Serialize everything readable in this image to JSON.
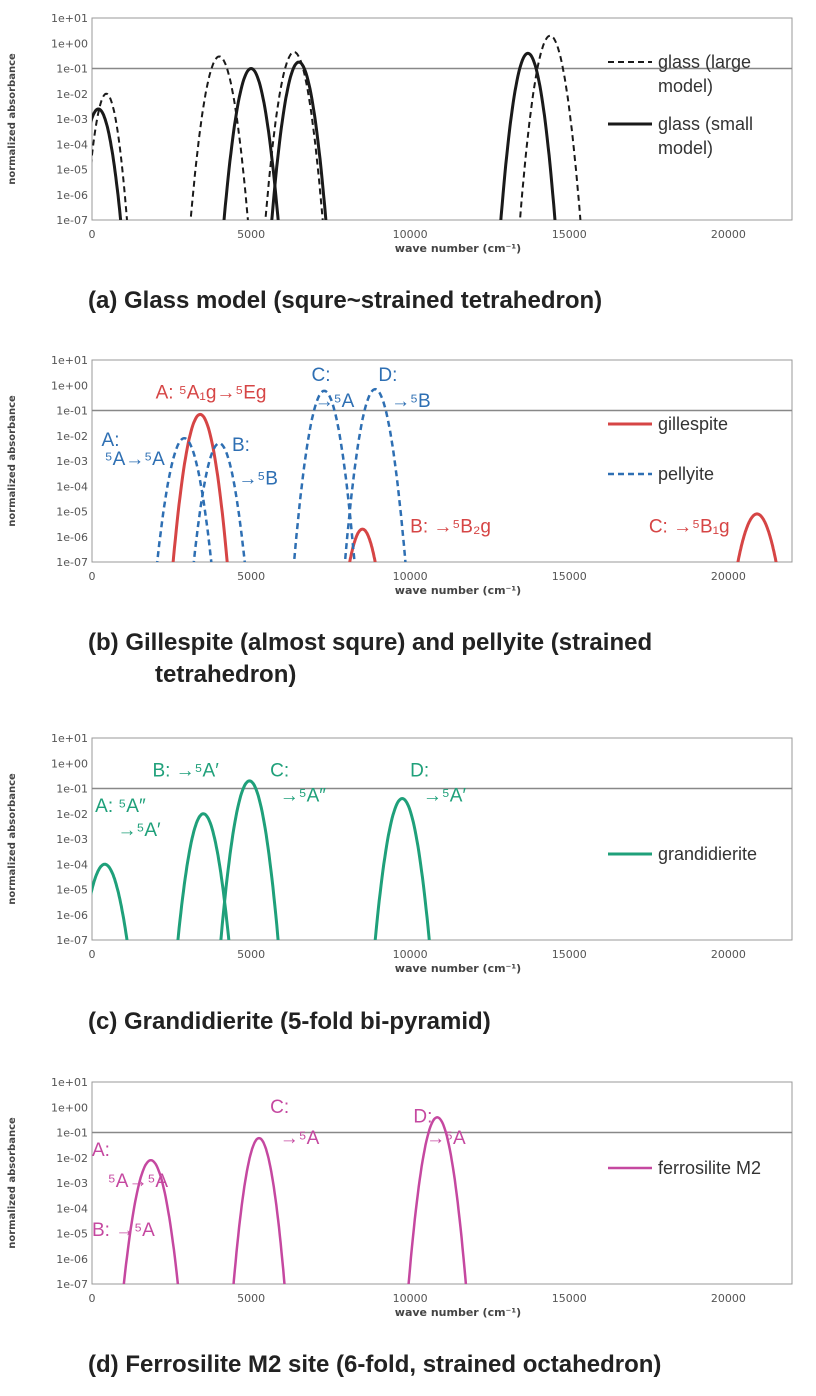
{
  "colors": {
    "black": "#1a1a1a",
    "red": "#d64545",
    "blue": "#2e6fb3",
    "green": "#1fa07a",
    "magenta": "#c548a0",
    "axis": "#999999",
    "ref_line": "#888888"
  },
  "captions": {
    "a": "(a) Glass model (squre~strained tetrahedron)",
    "b1": "(b) Gillespite (almost squre) and pellyite (strained",
    "b2": "tetrahedron)",
    "c": "(c) Grandidierite (5-fold bi-pyramid)",
    "d": "(d) Ferrosilite M2 site (6-fold, strained octahedron)"
  },
  "chart_data": [
    {
      "id": "a",
      "type": "line",
      "yscale": "log",
      "ylim": [
        1e-07,
        10
      ],
      "xlim": [
        0,
        22000
      ],
      "ylabel": "normalized absorbance",
      "xlabel": "wave number (cm⁻¹)",
      "x_ticks": [
        "0",
        "5000",
        "10000",
        "15000",
        "20000"
      ],
      "y_ticks": [
        "1e-07",
        "1e-06",
        "1e-05",
        "1e-04",
        "1e-03",
        "1e-02",
        "1e-01",
        "1e+00",
        "1e+01"
      ],
      "reference_line": 0.1,
      "grid": false,
      "legend": "right",
      "series": [
        {
          "name": "glass (large model)",
          "style": "dashed",
          "color": "#1a1a1a",
          "lw": 2.0,
          "peaks": [
            {
              "center": 450,
              "peak": 0.01,
              "half_width": 650
            },
            {
              "center": 4000,
              "peak": 0.3,
              "half_width": 900
            },
            {
              "center": 6350,
              "peak": 0.45,
              "half_width": 900
            },
            {
              "center": 14400,
              "peak": 2.0,
              "half_width": 950
            }
          ]
        },
        {
          "name": "glass (small model)",
          "style": "solid",
          "color": "#1a1a1a",
          "lw": 3.0,
          "peaks": [
            {
              "center": 200,
              "peak": 0.0025,
              "half_width": 700
            },
            {
              "center": 5000,
              "peak": 0.1,
              "half_width": 850
            },
            {
              "center": 6500,
              "peak": 0.18,
              "half_width": 850
            },
            {
              "center": 13700,
              "peak": 0.4,
              "half_width": 850
            }
          ]
        }
      ],
      "legend_entries": [
        {
          "style": "dashed",
          "lines": [
            "glass (large",
            "model)"
          ]
        },
        {
          "style": "solid",
          "lines": [
            "glass (small",
            "model)"
          ]
        }
      ],
      "annotations": []
    },
    {
      "id": "b",
      "type": "line",
      "yscale": "log",
      "ylim": [
        1e-07,
        10
      ],
      "xlim": [
        0,
        22000
      ],
      "ylabel": "normalized absorbance",
      "xlabel": "wave number (cm⁻¹)",
      "x_ticks": [
        "0",
        "5000",
        "10000",
        "15000",
        "20000"
      ],
      "y_ticks": [
        "1e-07",
        "1e-06",
        "1e-05",
        "1e-04",
        "1e-03",
        "1e-02",
        "1e-01",
        "1e+00",
        "1e+01"
      ],
      "reference_line": 0.1,
      "grid": false,
      "legend": "right",
      "series": [
        {
          "name": "gillespite",
          "style": "solid",
          "color": "#d64545",
          "lw": 3.0,
          "peaks": [
            {
              "center": 3400,
              "peak": 0.07,
              "half_width": 850
            },
            {
              "center": 8500,
              "peak": 2e-06,
              "half_width": 400
            },
            {
              "center": 20900,
              "peak": 8e-06,
              "half_width": 600
            }
          ]
        },
        {
          "name": "pellyite",
          "style": "dashed",
          "color": "#2e6fb3",
          "lw": 2.5,
          "peaks": [
            {
              "center": 2900,
              "peak": 0.008,
              "half_width": 850
            },
            {
              "center": 4000,
              "peak": 0.005,
              "half_width": 800
            },
            {
              "center": 7300,
              "peak": 0.6,
              "half_width": 950
            },
            {
              "center": 8900,
              "peak": 0.7,
              "half_width": 950
            }
          ]
        }
      ],
      "legend_entries": [
        {
          "style": "solid",
          "lines": [
            "gillespite"
          ]
        },
        {
          "style": "dashed",
          "lines": [
            "pellyite"
          ]
        }
      ],
      "annotations": [
        {
          "text": "A: ⁵A₁g→⁵Eg",
          "x_data": 2000,
          "y_data": 0.3,
          "color": "#d64545"
        },
        {
          "text": "A:",
          "x_data": 300,
          "y_data": 0.004,
          "color": "#2e6fb3"
        },
        {
          "text": "⁵A→⁵A",
          "x_data": 400,
          "y_data": 0.0007,
          "color": "#2e6fb3"
        },
        {
          "text": "B:",
          "x_data": 4400,
          "y_data": 0.0025,
          "color": "#2e6fb3"
        },
        {
          "text": "→⁵B",
          "x_data": 4600,
          "y_data": 0.00012,
          "color": "#2e6fb3"
        },
        {
          "text": "C:",
          "x_data": 6900,
          "y_data": 1.5,
          "color": "#2e6fb3"
        },
        {
          "text": "→⁵A",
          "x_data": 7000,
          "y_data": 0.14,
          "color": "#2e6fb3"
        },
        {
          "text": "D:",
          "x_data": 9000,
          "y_data": 1.5,
          "color": "#2e6fb3"
        },
        {
          "text": "→⁵B",
          "x_data": 9400,
          "y_data": 0.14,
          "color": "#2e6fb3"
        },
        {
          "text": "B: →⁵B₂g",
          "x_data": 10000,
          "y_data": 1.5e-06,
          "color": "#d64545"
        },
        {
          "text": "C: →⁵B₁g",
          "x_data": 17500,
          "y_data": 1.5e-06,
          "color": "#d64545"
        }
      ]
    },
    {
      "id": "c",
      "type": "line",
      "yscale": "log",
      "ylim": [
        1e-07,
        10
      ],
      "xlim": [
        0,
        22000
      ],
      "ylabel": "normalized absorbance",
      "xlabel": "wave number (cm⁻¹)",
      "x_ticks": [
        "0",
        "5000",
        "10000",
        "15000",
        "20000"
      ],
      "y_ticks": [
        "1e-07",
        "1e-06",
        "1e-05",
        "1e-04",
        "1e-03",
        "1e-02",
        "1e-01",
        "1e+00",
        "1e+01"
      ],
      "reference_line": 0.1,
      "grid": false,
      "legend": "right",
      "series": [
        {
          "name": "grandidierite",
          "style": "solid",
          "color": "#1fa07a",
          "lw": 3.0,
          "peaks": [
            {
              "center": 400,
              "peak": 0.0001,
              "half_width": 700
            },
            {
              "center": 3500,
              "peak": 0.01,
              "half_width": 800
            },
            {
              "center": 4950,
              "peak": 0.2,
              "half_width": 900
            },
            {
              "center": 9750,
              "peak": 0.04,
              "half_width": 850
            }
          ]
        }
      ],
      "legend_entries": [
        {
          "style": "solid",
          "lines": [
            "grandidierite"
          ]
        }
      ],
      "annotations": [
        {
          "text": "B: →⁵A′",
          "x_data": 1900,
          "y_data": 0.3,
          "color": "#1fa07a"
        },
        {
          "text": "C:",
          "x_data": 5600,
          "y_data": 0.3,
          "color": "#1fa07a"
        },
        {
          "text": "→⁵A″",
          "x_data": 5900,
          "y_data": 0.03,
          "color": "#1fa07a"
        },
        {
          "text": "D:",
          "x_data": 10000,
          "y_data": 0.3,
          "color": "#1fa07a"
        },
        {
          "text": "→⁵A′",
          "x_data": 10400,
          "y_data": 0.03,
          "color": "#1fa07a"
        },
        {
          "text": "A: ⁵A″",
          "x_data": 100,
          "y_data": 0.012,
          "color": "#1fa07a"
        },
        {
          "text": "→⁵A′",
          "x_data": 800,
          "y_data": 0.0013,
          "color": "#1fa07a"
        }
      ]
    },
    {
      "id": "d",
      "type": "line",
      "yscale": "log",
      "ylim": [
        1e-07,
        10
      ],
      "xlim": [
        0,
        22000
      ],
      "ylabel": "normalized absorbance",
      "xlabel": "wave number (cm⁻¹)",
      "x_ticks": [
        "0",
        "5000",
        "10000",
        "15000",
        "20000"
      ],
      "y_ticks": [
        "1e-07",
        "1e-06",
        "1e-05",
        "1e-04",
        "1e-03",
        "1e-02",
        "1e-01",
        "1e+00",
        "1e+01"
      ],
      "reference_line": 0.1,
      "grid": false,
      "legend": "right",
      "series": [
        {
          "name": "ferrosilite M2",
          "style": "solid",
          "color": "#c548a0",
          "lw": 2.5,
          "peaks": [
            {
              "center": 1850,
              "peak": 0.008,
              "half_width": 850
            },
            {
              "center": 5250,
              "peak": 0.06,
              "half_width": 800
            },
            {
              "center": 10850,
              "peak": 0.4,
              "half_width": 900
            }
          ]
        }
      ],
      "legend_entries": [
        {
          "style": "solid",
          "lines": [
            "ferrosilite M2"
          ]
        }
      ],
      "annotations": [
        {
          "text": "C:",
          "x_data": 5600,
          "y_data": 0.6,
          "color": "#c548a0"
        },
        {
          "text": "→⁵A",
          "x_data": 5900,
          "y_data": 0.035,
          "color": "#c548a0"
        },
        {
          "text": "D:",
          "x_data": 10100,
          "y_data": 0.25,
          "color": "#c548a0"
        },
        {
          "text": "→⁵A",
          "x_data": 10500,
          "y_data": 0.035,
          "color": "#c548a0"
        },
        {
          "text": "A:",
          "x_data": 0,
          "y_data": 0.012,
          "color": "#c548a0"
        },
        {
          "text": "⁵A→⁵A",
          "x_data": 500,
          "y_data": 0.0007,
          "color": "#c548a0"
        },
        {
          "text": "B: →⁵A",
          "x_data": 0,
          "y_data": 8e-06,
          "color": "#c548a0"
        }
      ]
    }
  ]
}
